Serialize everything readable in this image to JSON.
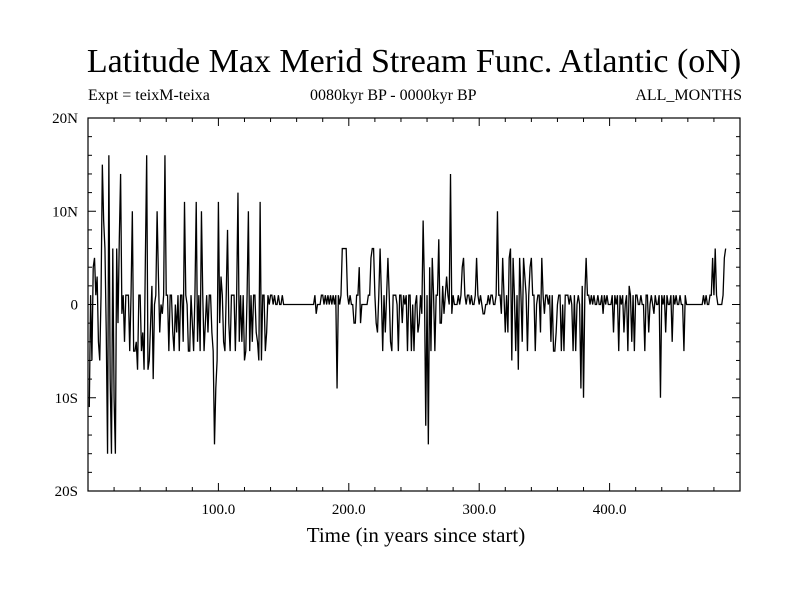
{
  "title": "Latitude Max Merid Stream Func. Atlantic (oN)",
  "subtitle_left": "Expt = teixM-teixa",
  "subtitle_center": "0080kyr BP - 0000kyr BP",
  "subtitle_right": "ALL_MONTHS",
  "chart_data": {
    "type": "line",
    "xlabel": "Time (in years since start)",
    "ylabel": "",
    "xlim": [
      0,
      500
    ],
    "ylim": [
      -20,
      20
    ],
    "x_ticks": [
      {
        "value": 100,
        "label": "100.0"
      },
      {
        "value": 200,
        "label": "200.0"
      },
      {
        "value": 300,
        "label": "300.0"
      },
      {
        "value": 400,
        "label": "400.0"
      }
    ],
    "y_ticks": [
      {
        "value": 20,
        "label": "20N"
      },
      {
        "value": 10,
        "label": "10N"
      },
      {
        "value": 0,
        "label": "0"
      },
      {
        "value": -10,
        "label": "10S"
      },
      {
        "value": -20,
        "label": "20S"
      }
    ],
    "grid": false,
    "series": [
      {
        "color": "#000000",
        "x_start": 1,
        "x_step": 1,
        "values": [
          -11,
          1,
          -6,
          4,
          5,
          1,
          3,
          -4,
          -6,
          1,
          15,
          9,
          6,
          -3,
          -16,
          16,
          -8,
          -16,
          6,
          -10,
          -16,
          6,
          -2,
          7,
          14,
          -1,
          1,
          -4,
          1,
          1,
          1,
          -5,
          1,
          10,
          -5,
          -5,
          -4,
          -7,
          1,
          1,
          -5,
          -3,
          -7,
          5,
          16,
          -7,
          -6,
          -2,
          2,
          -8,
          0,
          1,
          10,
          3,
          -3,
          0,
          -1,
          1,
          16,
          1,
          1,
          -5,
          1,
          1,
          -3,
          -5,
          0,
          -3,
          1,
          -5,
          1,
          1,
          -4,
          11,
          1,
          0,
          -5,
          -5,
          1,
          -2,
          -5,
          1,
          11,
          -4,
          1,
          -5,
          10,
          1,
          -5,
          -2,
          1,
          -3,
          1,
          1,
          -3,
          -5,
          -15,
          -9,
          -6,
          11,
          -2,
          3,
          1,
          -4,
          -5,
          1,
          8,
          -2,
          -5,
          1,
          1,
          1,
          -5,
          1,
          12,
          -4,
          1,
          -4,
          1,
          -6,
          -5,
          1,
          10,
          -5,
          1,
          -4,
          1,
          1,
          -3,
          -4,
          -6,
          11,
          -6,
          1,
          1,
          -5,
          -3,
          1,
          0,
          1,
          1,
          0,
          1,
          0,
          0,
          1,
          0,
          0,
          1,
          0,
          0,
          0,
          0,
          0,
          0,
          0,
          0,
          0,
          0,
          0,
          0,
          0,
          0,
          0,
          0,
          0,
          0,
          0,
          0,
          0,
          0,
          0,
          0,
          1,
          -1,
          0,
          0,
          0,
          1,
          1,
          0,
          1,
          0,
          1,
          0,
          1,
          0,
          1,
          0,
          1,
          -9,
          1,
          0,
          1,
          6,
          6,
          6,
          6,
          1,
          0,
          1,
          0,
          0,
          -2,
          -2,
          1,
          1,
          4,
          -2,
          0,
          0,
          0,
          0,
          0,
          1,
          1,
          5,
          6,
          6,
          1,
          -2,
          -3,
          1,
          6,
          1,
          -5,
          1,
          -3,
          1,
          5,
          1,
          -4,
          -5,
          1,
          1,
          1,
          0,
          -5,
          1,
          1,
          -2,
          1,
          0,
          1,
          -5,
          1,
          1,
          -5,
          0,
          -5,
          0,
          1,
          -3,
          -2,
          1,
          -1,
          9,
          2,
          -13,
          1,
          -15,
          4,
          -5,
          5,
          1,
          -5,
          1,
          1,
          7,
          -2,
          -2,
          2,
          -1,
          1,
          3,
          1,
          0,
          14,
          -1,
          1,
          0,
          0,
          0,
          1,
          0,
          1,
          4,
          5,
          1,
          0,
          1,
          1,
          0,
          1,
          0,
          0,
          1,
          5,
          1,
          0,
          1,
          0,
          -1,
          -1,
          0,
          0,
          1,
          0,
          1,
          1,
          0,
          0,
          1,
          10,
          1,
          1,
          -1,
          5,
          1,
          -3,
          1,
          -3,
          5,
          6,
          -6,
          5,
          1,
          -5,
          1,
          -7,
          5,
          1,
          -4,
          5,
          3,
          1,
          -5,
          1,
          4,
          5,
          1,
          1,
          -5,
          0,
          1,
          1,
          -3,
          5,
          1,
          -1,
          1,
          1,
          0,
          1,
          -4,
          1,
          -5,
          -5,
          -3,
          0,
          1,
          1,
          -5,
          0,
          -5,
          1,
          1,
          1,
          0,
          1,
          0,
          -5,
          1,
          -5,
          0,
          1,
          0,
          -9,
          2,
          -10,
          1,
          5,
          1,
          1,
          0,
          1,
          0,
          1,
          0,
          0,
          1,
          0,
          0,
          1,
          -1,
          1,
          0,
          1,
          0,
          0,
          0,
          1,
          -3,
          1,
          0,
          1,
          -5,
          1,
          0,
          1,
          -3,
          0,
          1,
          -5,
          2,
          1,
          -4,
          1,
          -5,
          1,
          1,
          0,
          0,
          1,
          0,
          0,
          -5,
          1,
          1,
          -3,
          0,
          1,
          0,
          -1,
          1,
          0,
          0,
          1,
          -10,
          1,
          0,
          1,
          -3,
          1,
          0,
          0,
          1,
          -4,
          1,
          0,
          1,
          0,
          0,
          1,
          0,
          0,
          -5,
          1,
          0,
          0,
          0,
          0,
          0,
          0,
          0,
          0,
          0,
          0,
          0,
          0,
          0,
          1,
          0,
          1,
          0,
          0,
          1,
          1,
          5,
          1,
          6,
          1,
          0,
          0,
          0,
          0,
          1,
          5,
          6
        ]
      }
    ]
  }
}
